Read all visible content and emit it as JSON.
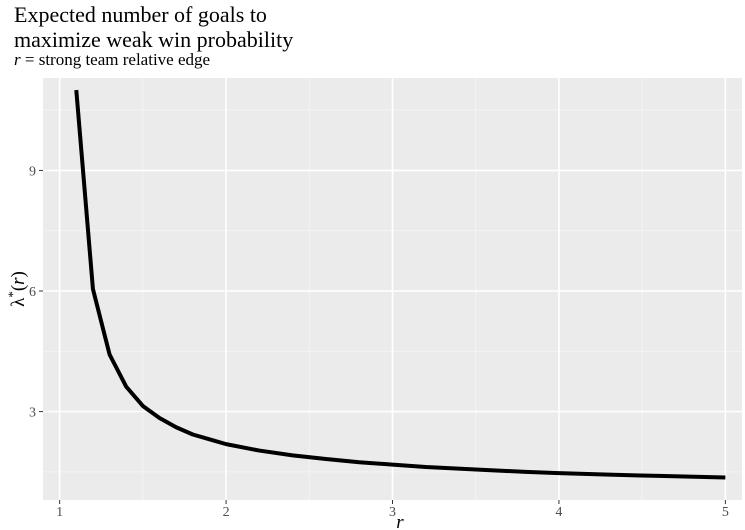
{
  "chart_data": {
    "type": "line",
    "title_line1": "Expected number of goals to",
    "title_line2": "maximize weak win probability",
    "subtitle_var": "r",
    "subtitle_rest": " = strong team relative edge",
    "xlabel": "r",
    "ylabel_symbol": "λ",
    "ylabel_sup": "*",
    "ylabel_open": "(",
    "ylabel_var": "r",
    "ylabel_close": ")",
    "xlim": [
      0.9,
      5.1
    ],
    "ylim": [
      0.8,
      11.3
    ],
    "x_ticks": [
      1,
      2,
      3,
      4,
      5
    ],
    "y_ticks": [
      3,
      6,
      9
    ],
    "grid": true,
    "series": [
      {
        "x": [
          1.1,
          1.2,
          1.3,
          1.4,
          1.5,
          1.6,
          1.7,
          1.8,
          1.9,
          2.0,
          2.2,
          2.4,
          2.6,
          2.8,
          3.0,
          3.2,
          3.5,
          3.8,
          4.0,
          4.3,
          4.6,
          5.0
        ],
        "values": [
          11.0,
          6.05,
          4.42,
          3.62,
          3.14,
          2.84,
          2.61,
          2.43,
          2.31,
          2.19,
          2.03,
          1.91,
          1.82,
          1.74,
          1.68,
          1.62,
          1.56,
          1.5,
          1.47,
          1.43,
          1.4,
          1.36
        ]
      }
    ]
  }
}
